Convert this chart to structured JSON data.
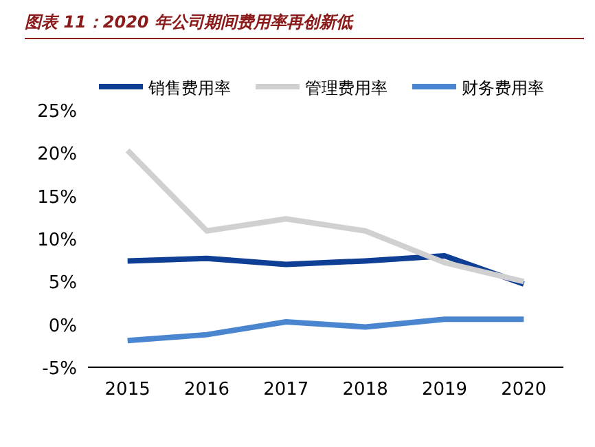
{
  "chart_data": {
    "type": "line",
    "title": "图表 11：2020 年公司期间费用率再创新低",
    "categories": [
      "2015",
      "2016",
      "2017",
      "2018",
      "2019",
      "2020"
    ],
    "series": [
      {
        "name": "销售费用率",
        "color": "#0f3f94",
        "values": [
          7.4,
          7.7,
          7.0,
          7.4,
          8.0,
          4.7
        ]
      },
      {
        "name": "管理费用率",
        "color": "#d0d0d0",
        "values": [
          20.3,
          10.9,
          12.3,
          10.9,
          7.2,
          5.0
        ]
      },
      {
        "name": "财务费用率",
        "color": "#4a86d0",
        "values": [
          -1.9,
          -1.2,
          0.3,
          -0.3,
          0.6,
          0.6
        ]
      }
    ],
    "ylim": [
      -5,
      25
    ],
    "yticks": [
      {
        "value": -5,
        "label": "-5%"
      },
      {
        "value": 0,
        "label": "0%"
      },
      {
        "value": 5,
        "label": "5%"
      },
      {
        "value": 10,
        "label": "10%"
      },
      {
        "value": 15,
        "label": "15%"
      },
      {
        "value": 20,
        "label": "20%"
      },
      {
        "value": 25,
        "label": "25%"
      }
    ],
    "legend": "top",
    "grid": false,
    "marker": "none",
    "line_style": "solid"
  }
}
